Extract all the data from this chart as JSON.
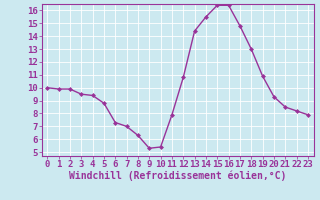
{
  "x": [
    0,
    1,
    2,
    3,
    4,
    5,
    6,
    7,
    8,
    9,
    10,
    11,
    12,
    13,
    14,
    15,
    16,
    17,
    18,
    19,
    20,
    21,
    22,
    23
  ],
  "y": [
    10.0,
    9.9,
    9.9,
    9.5,
    9.4,
    8.8,
    7.3,
    7.0,
    6.3,
    5.3,
    5.4,
    7.9,
    10.8,
    14.4,
    15.5,
    16.4,
    16.4,
    14.8,
    13.0,
    10.9,
    9.3,
    8.5,
    8.2,
    7.9
  ],
  "line_color": "#993399",
  "marker": "D",
  "marker_size": 2.0,
  "bg_color": "#cce9f0",
  "grid_color": "#ffffff",
  "axis_color": "#993399",
  "xlabel": "Windchill (Refroidissement éolien,°C)",
  "ylim_min": 5,
  "ylim_max": 16,
  "xlim_min": 0,
  "xlim_max": 23,
  "yticks": [
    5,
    6,
    7,
    8,
    9,
    10,
    11,
    12,
    13,
    14,
    15,
    16
  ],
  "xticks": [
    0,
    1,
    2,
    3,
    4,
    5,
    6,
    7,
    8,
    9,
    10,
    11,
    12,
    13,
    14,
    15,
    16,
    17,
    18,
    19,
    20,
    21,
    22,
    23
  ],
  "tick_fontsize": 6.5,
  "xlabel_fontsize": 7.0,
  "linewidth": 1.0
}
